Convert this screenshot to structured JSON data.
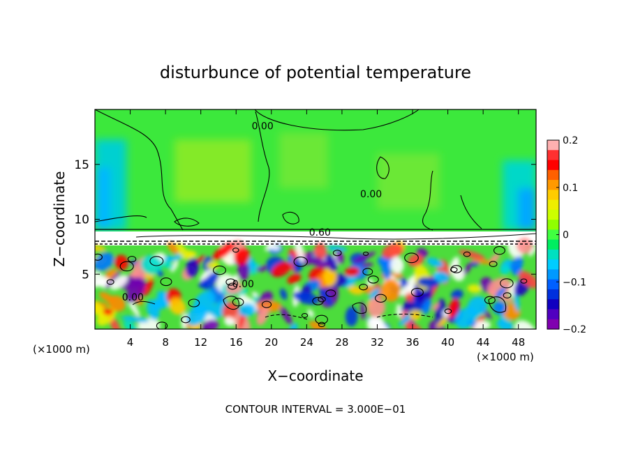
{
  "chart_data": {
    "type": "heatmap",
    "title": "disturbunce of potential temperature",
    "xlabel": "X−coordinate",
    "ylabel": "Z−coordinate",
    "x_unit_left": "(×1000 m)",
    "x_unit_right": "(×1000 m)",
    "footer": "CONTOUR INTERVAL = 3.000E−01",
    "xlim": [
      0,
      50
    ],
    "ylim": [
      0,
      20
    ],
    "x_ticks": [
      4,
      8,
      12,
      16,
      20,
      24,
      28,
      32,
      36,
      40,
      44,
      48
    ],
    "x_tick_labels": [
      "4",
      "8",
      "12",
      "16",
      "20",
      "24",
      "28",
      "32",
      "36",
      "40",
      "44",
      "48"
    ],
    "y_ticks": [
      5,
      10,
      15
    ],
    "y_tick_labels": [
      "5",
      "10",
      "15"
    ],
    "colorbar": {
      "range": [
        -0.2,
        0.2
      ],
      "ticks": [
        0.2,
        0.1,
        0,
        -0.1,
        -0.2
      ],
      "tick_labels": [
        "0.2",
        "0.1",
        "0",
        "−0.1",
        "−0.2"
      ],
      "colors": [
        "#FFB0B0",
        "#FF3030",
        "#FF0000",
        "#FF6000",
        "#FF9900",
        "#FFCC00",
        "#EEEE00",
        "#CCFF00",
        "#90FF00",
        "#40FF40",
        "#00EE60",
        "#00E0C0",
        "#00CCFF",
        "#0099FF",
        "#0060FF",
        "#0030DD",
        "#1000C0",
        "#5000C0",
        "#8000B0"
      ]
    },
    "contour_labels": [
      {
        "text": "0.00",
        "x": 19.0,
        "y": 18.2
      },
      {
        "text": "0.00",
        "x": 31.3,
        "y": 12.0
      },
      {
        "text": "0.60",
        "x": 25.5,
        "y": 8.5
      },
      {
        "text": "0.00",
        "x": 4.3,
        "y": 2.6
      },
      {
        "text": "0.00",
        "x": 16.8,
        "y": 3.8
      }
    ]
  }
}
